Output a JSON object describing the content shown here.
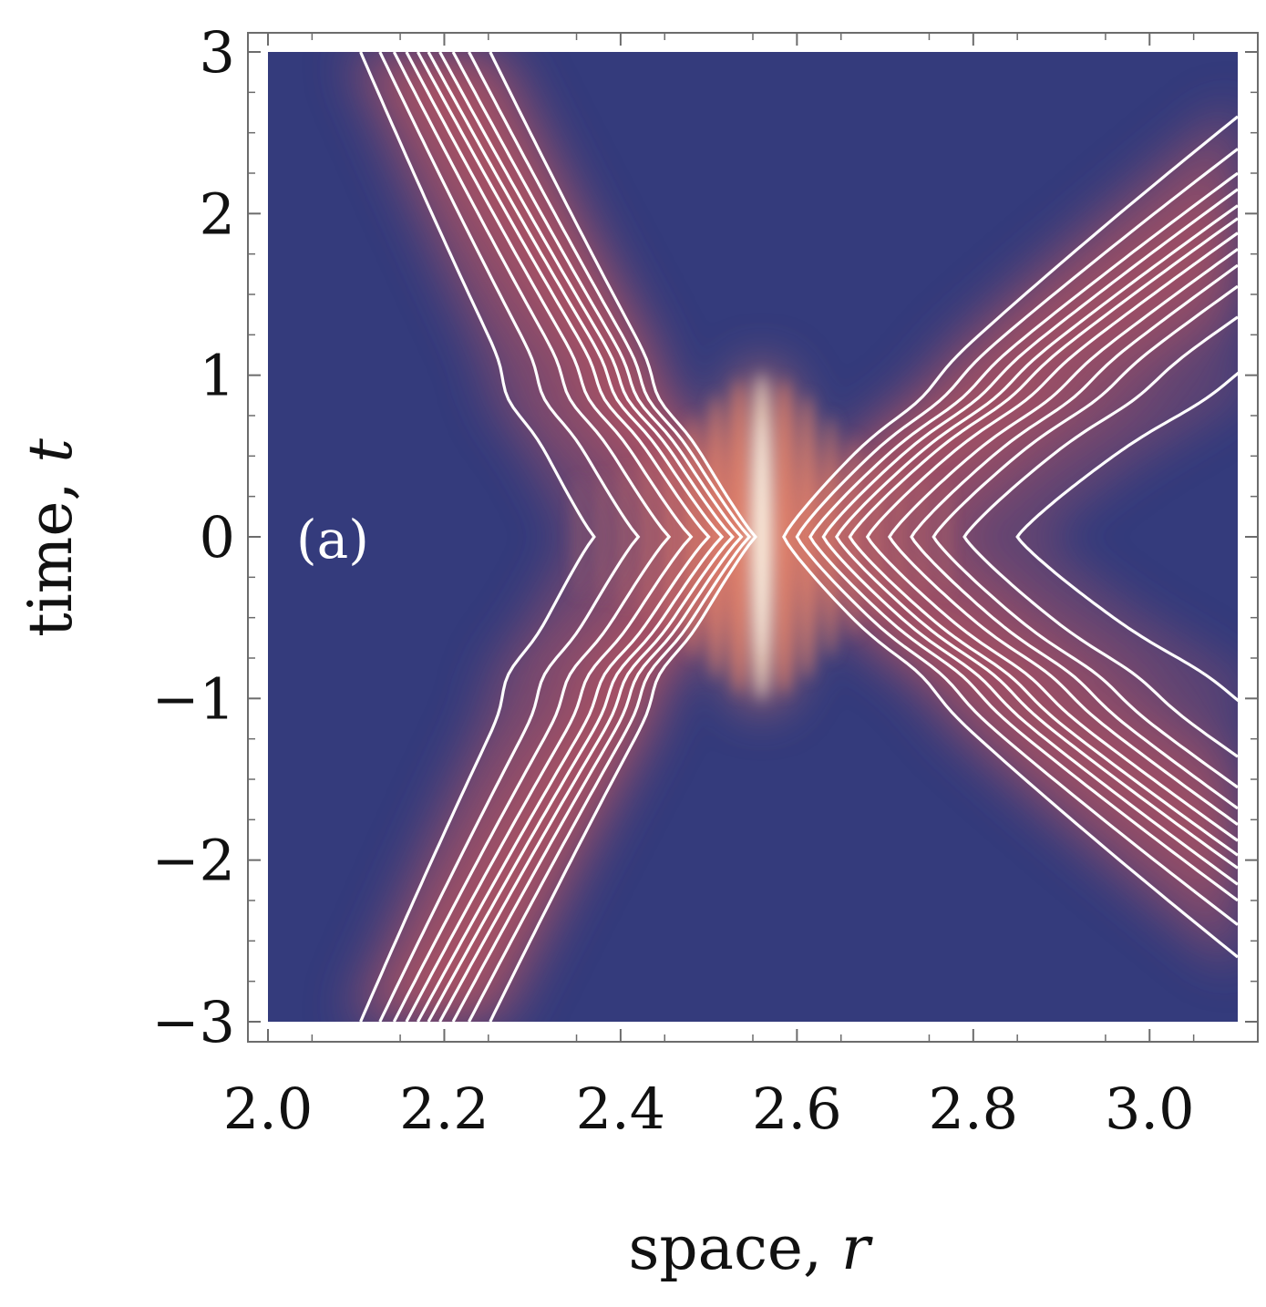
{
  "chart_data": {
    "type": "heatmap",
    "title": "",
    "panel_label": "(a)",
    "xlabel": {
      "text": "space, ",
      "var": "r"
    },
    "ylabel": {
      "text": "time, ",
      "var": "t"
    },
    "xlim": [
      2.0,
      3.1
    ],
    "ylim": [
      -3,
      3
    ],
    "x_ticks": [
      {
        "value": 2.0,
        "label": "2.0"
      },
      {
        "value": 2.2,
        "label": "2.2"
      },
      {
        "value": 2.4,
        "label": "2.4"
      },
      {
        "value": 2.6,
        "label": "2.6"
      },
      {
        "value": 2.8,
        "label": "2.8"
      },
      {
        "value": 3.0,
        "label": "3.0"
      }
    ],
    "y_ticks": [
      {
        "value": 3,
        "label": "3"
      },
      {
        "value": 2,
        "label": "2"
      },
      {
        "value": 1,
        "label": "1"
      },
      {
        "value": 0,
        "label": "0"
      },
      {
        "value": -1,
        "label": "−1"
      },
      {
        "value": -2,
        "label": "−2"
      },
      {
        "value": -3,
        "label": "−3"
      }
    ],
    "grid": false,
    "colormap": {
      "low": "#343b7c",
      "mid": "#c05a5e",
      "high": "#fff5dc"
    },
    "contour_color": "#ffffff",
    "interaction_center": {
      "r": 2.56,
      "t": 0
    },
    "left_packet": {
      "arrival_r_at_t3": [
        2.105,
        2.127,
        2.143,
        2.157,
        2.17,
        2.182,
        2.195,
        2.21,
        2.228,
        2.252
      ],
      "turning_r_at_t0": [
        2.37,
        2.42,
        2.455,
        2.48,
        2.5,
        2.515,
        2.527,
        2.537,
        2.546,
        2.553
      ]
    },
    "right_packet": {
      "edge_t_at_r3_1": [
        1.03,
        1.36,
        1.55,
        1.68,
        1.78,
        1.88,
        1.97,
        2.05,
        2.15,
        2.25,
        2.4,
        2.6
      ],
      "turning_r_at_t0": [
        2.85,
        2.79,
        2.755,
        2.73,
        2.705,
        2.68,
        2.66,
        2.645,
        2.63,
        2.615,
        2.6,
        2.585
      ]
    }
  }
}
